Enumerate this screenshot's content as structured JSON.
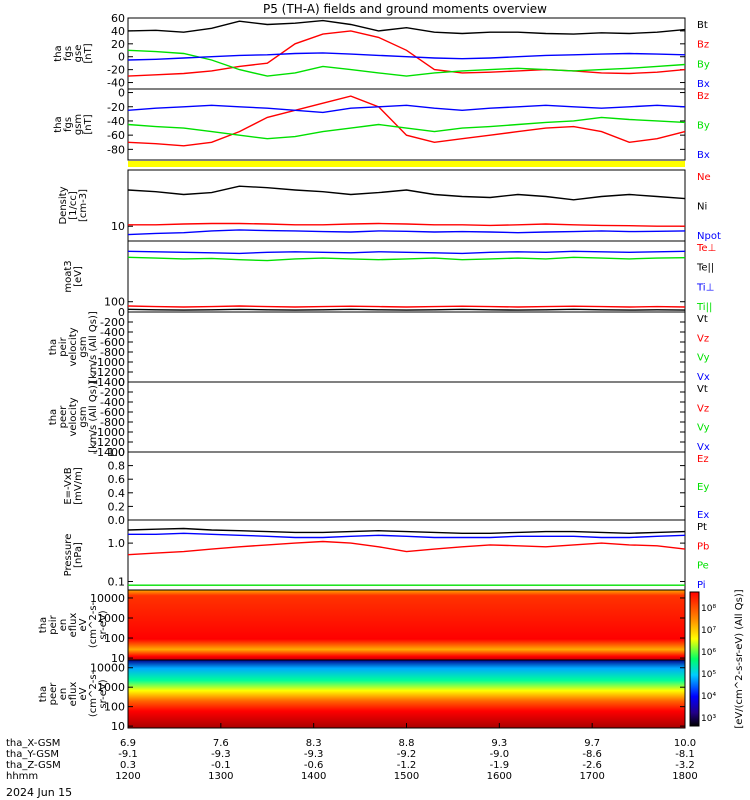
{
  "title": "P5 (TH-A) fields and ground moments overview",
  "date_label": "2024 Jun 15",
  "colors": {
    "black": "#000000",
    "red": "#ff0000",
    "green": "#00e000",
    "blue": "#0000ff",
    "yellow": "#ffff00"
  },
  "chart_data": [
    {
      "type": "line",
      "ylabel_lines": [
        "tha",
        "fgs",
        "gse",
        "[nT]"
      ],
      "ylim": [
        -50,
        60
      ],
      "yticks": [
        "60",
        "40",
        "20",
        "0",
        "-20",
        "-40"
      ],
      "ytick_values": [
        60,
        40,
        20,
        0,
        -20,
        -40
      ],
      "series": [
        {
          "name": "Bt",
          "color": "black",
          "values": [
            40,
            41,
            38,
            44,
            55,
            50,
            52,
            56,
            50,
            40,
            45,
            38,
            36,
            38,
            38,
            36,
            35,
            37,
            36,
            38,
            42
          ]
        },
        {
          "name": "Bz",
          "color": "red",
          "values": [
            -30,
            -28,
            -26,
            -22,
            -15,
            -10,
            20,
            35,
            40,
            30,
            10,
            -20,
            -25,
            -24,
            -22,
            -20,
            -22,
            -25,
            -26,
            -24,
            -20
          ]
        },
        {
          "name": "By",
          "color": "green",
          "values": [
            10,
            8,
            5,
            -5,
            -20,
            -30,
            -25,
            -15,
            -20,
            -25,
            -30,
            -25,
            -22,
            -20,
            -18,
            -20,
            -22,
            -20,
            -18,
            -15,
            -12
          ]
        },
        {
          "name": "Bx",
          "color": "blue",
          "values": [
            -5,
            -4,
            -2,
            0,
            2,
            3,
            5,
            6,
            4,
            2,
            0,
            -2,
            -3,
            -2,
            0,
            2,
            3,
            4,
            5,
            4,
            3
          ]
        }
      ]
    },
    {
      "type": "line",
      "ylabel_lines": [
        "tha",
        "fgs",
        "gsm",
        "[nT]"
      ],
      "ylim": [
        -95,
        5
      ],
      "yticks": [
        "0",
        "-20",
        "-40",
        "-60",
        "-80"
      ],
      "ytick_values": [
        0,
        -20,
        -40,
        -60,
        -80
      ],
      "series": [
        {
          "name": "Bz",
          "color": "red",
          "values": [
            -70,
            -72,
            -75,
            -70,
            -55,
            -35,
            -25,
            -15,
            -5,
            -20,
            -60,
            -70,
            -65,
            -60,
            -55,
            -50,
            -48,
            -55,
            -70,
            -65,
            -55
          ]
        },
        {
          "name": "By",
          "color": "green",
          "values": [
            -45,
            -48,
            -50,
            -55,
            -60,
            -65,
            -62,
            -55,
            -50,
            -45,
            -50,
            -55,
            -50,
            -48,
            -45,
            -42,
            -40,
            -35,
            -38,
            -40,
            -42
          ]
        },
        {
          "name": "Bx",
          "color": "blue",
          "values": [
            -25,
            -22,
            -20,
            -18,
            -20,
            -22,
            -25,
            -28,
            -22,
            -20,
            -18,
            -22,
            -25,
            -22,
            -20,
            -18,
            -20,
            -22,
            -20,
            -18,
            -20
          ]
        }
      ]
    },
    {
      "type": "line",
      "ylabel_lines": [
        "Density",
        "[1/cc]",
        "[cm-3]"
      ],
      "yscale": "log",
      "ylim": [
        6,
        70
      ],
      "yticks": [
        "10"
      ],
      "ytick_values": [
        10
      ],
      "series": [
        {
          "name": "Ne",
          "color": "red",
          "values": [
            10.5,
            10.5,
            10.8,
            11,
            11,
            10.8,
            10.5,
            10.5,
            10.8,
            11,
            10.8,
            10.5,
            10.5,
            10.3,
            10.5,
            10.8,
            10.5,
            10.3,
            10.2,
            10,
            10
          ]
        },
        {
          "name": "Ni",
          "color": "black",
          "values": [
            35,
            33,
            30,
            32,
            40,
            38,
            35,
            33,
            30,
            32,
            35,
            30,
            28,
            27,
            30,
            28,
            25,
            28,
            30,
            28,
            26
          ]
        },
        {
          "name": "Npot",
          "color": "blue",
          "values": [
            7.5,
            7.8,
            8,
            8.5,
            8.8,
            8.6,
            8.5,
            8.3,
            8.2,
            8.5,
            8.4,
            8.2,
            8.3,
            8.2,
            8.0,
            8.2,
            8.3,
            8.5,
            8.3,
            8.4,
            8.5
          ]
        }
      ]
    },
    {
      "type": "line",
      "ylabel_lines": [
        "moat3",
        "[eV]"
      ],
      "yscale": "log",
      "ylim": [
        50,
        6000
      ],
      "yticks": [
        "100"
      ],
      "ytick_values": [
        100
      ],
      "series": [
        {
          "name": "Te⊥",
          "color": "red",
          "values": [
            75,
            72,
            70,
            72,
            75,
            72,
            70,
            72,
            74,
            72,
            70,
            72,
            74,
            72,
            70,
            72,
            74,
            72,
            70,
            72,
            70
          ]
        },
        {
          "name": "Te||",
          "color": "black",
          "values": [
            60,
            58,
            57,
            58,
            60,
            58,
            57,
            58,
            60,
            58,
            57,
            58,
            60,
            58,
            57,
            58,
            60,
            58,
            57,
            58,
            57
          ]
        },
        {
          "name": "Ti⊥",
          "color": "blue",
          "values": [
            3000,
            2900,
            2800,
            2700,
            2600,
            2800,
            2900,
            2800,
            2700,
            2900,
            2800,
            2700,
            2600,
            2800,
            2900,
            2800,
            3000,
            2900,
            2800,
            2900,
            3000
          ]
        },
        {
          "name": "Ti||",
          "color": "green",
          "values": [
            2000,
            1900,
            1800,
            1850,
            1700,
            1600,
            1800,
            1900,
            1800,
            1700,
            1800,
            1900,
            1700,
            1800,
            1900,
            1800,
            2000,
            1900,
            1800,
            1900,
            1950
          ]
        }
      ]
    },
    {
      "type": "line",
      "ylabel_lines": [
        "tha",
        "peir",
        "velocity",
        "gsm",
        "[km/s (All Qs)]"
      ],
      "ylim": [
        -1400,
        0
      ],
      "yticks": [
        "0",
        "-200",
        "-400",
        "-600",
        "-800",
        "-1000",
        "-1200",
        "-1400"
      ],
      "ytick_values": [
        0,
        -200,
        -400,
        -600,
        -800,
        -1000,
        -1200,
        -1400
      ],
      "series": [
        {
          "name": "Vt",
          "color": "black",
          "values": []
        },
        {
          "name": "Vz",
          "color": "red",
          "values": []
        },
        {
          "name": "Vy",
          "color": "green",
          "values": []
        },
        {
          "name": "Vx",
          "color": "blue",
          "values": []
        }
      ]
    },
    {
      "type": "line",
      "ylabel_lines": [
        "tha",
        "peer",
        "velocity",
        "gsm",
        "[km/s (All Qs)]"
      ],
      "ylim": [
        -1400,
        0
      ],
      "yticks": [
        "0",
        "-200",
        "-400",
        "-600",
        "-800",
        "-1000",
        "-1200",
        "-1400"
      ],
      "ytick_values": [
        0,
        -200,
        -400,
        -600,
        -800,
        -1000,
        -1200,
        -1400
      ],
      "series": [
        {
          "name": "Vt",
          "color": "black",
          "values": []
        },
        {
          "name": "Vz",
          "color": "red",
          "values": []
        },
        {
          "name": "Vy",
          "color": "green",
          "values": []
        },
        {
          "name": "Vx",
          "color": "blue",
          "values": []
        }
      ]
    },
    {
      "type": "line",
      "ylabel_lines": [
        "E=-VxB",
        "[mV/m]"
      ],
      "ylim": [
        0,
        1
      ],
      "yticks": [
        "1.0",
        "0.8",
        "0.6",
        "0.4",
        "0.2",
        "0.0"
      ],
      "ytick_values": [
        1.0,
        0.8,
        0.6,
        0.4,
        0.2,
        0.0
      ],
      "series": [
        {
          "name": "Ez",
          "color": "red",
          "values": []
        },
        {
          "name": "Ey",
          "color": "green",
          "values": []
        },
        {
          "name": "Ex",
          "color": "blue",
          "values": []
        }
      ]
    },
    {
      "type": "line",
      "ylabel_lines": [
        "Pressure",
        "[nPa]"
      ],
      "yscale": "log",
      "ylim": [
        0.06,
        4
      ],
      "yticks": [
        "1.0",
        "0.1"
      ],
      "ytick_values": [
        1.0,
        0.1
      ],
      "series": [
        {
          "name": "Pt",
          "color": "black",
          "values": [
            2.2,
            2.3,
            2.4,
            2.2,
            2.1,
            2.0,
            1.9,
            1.9,
            2.0,
            2.1,
            2.0,
            1.9,
            1.8,
            1.8,
            1.9,
            2.0,
            2.0,
            1.9,
            1.8,
            1.9,
            2.0
          ]
        },
        {
          "name": "Pb",
          "color": "red",
          "values": [
            0.5,
            0.55,
            0.6,
            0.7,
            0.8,
            0.9,
            1.0,
            1.1,
            1.0,
            0.8,
            0.6,
            0.7,
            0.8,
            0.9,
            0.85,
            0.8,
            0.9,
            1.0,
            0.9,
            0.85,
            0.7
          ]
        },
        {
          "name": "Pe",
          "color": "green",
          "values": [
            0.08,
            0.08,
            0.08,
            0.08,
            0.08,
            0.08,
            0.08,
            0.08,
            0.08,
            0.08,
            0.08,
            0.08,
            0.08,
            0.08,
            0.08,
            0.08,
            0.08,
            0.08,
            0.08,
            0.08,
            0.08
          ]
        },
        {
          "name": "Pi",
          "color": "blue",
          "values": [
            1.7,
            1.7,
            1.8,
            1.7,
            1.6,
            1.5,
            1.4,
            1.4,
            1.5,
            1.6,
            1.5,
            1.4,
            1.4,
            1.4,
            1.5,
            1.5,
            1.5,
            1.4,
            1.4,
            1.5,
            1.6
          ]
        }
      ]
    },
    {
      "type": "heatmap",
      "ylabel_lines": [
        "tha",
        "peir",
        "en",
        "eflux",
        "eV",
        "(cm^2-s-",
        "sr-eV)"
      ],
      "yscale": "log",
      "ylim": [
        8,
        25000
      ],
      "yticks": [
        "10000",
        "1000",
        "100",
        "10"
      ],
      "ytick_values": [
        10000,
        1000,
        100,
        10
      ]
    },
    {
      "type": "heatmap",
      "ylabel_lines": [
        "tha",
        "peer",
        "en",
        "eflux",
        "eV",
        "(cm^2-s-",
        "sr-eV)"
      ],
      "yscale": "log",
      "ylim": [
        8,
        25000
      ],
      "yticks": [
        "10000",
        "1000",
        "100",
        "10"
      ],
      "ytick_values": [
        10000,
        1000,
        100,
        10
      ]
    }
  ],
  "colorbar": {
    "label": "[eV/(cm^2-s-sr-eV) (All Qs)]",
    "ticks": [
      "10⁸",
      "10⁷",
      "10⁶",
      "10⁵",
      "10⁴",
      "10³"
    ]
  },
  "x_axis": {
    "hhmm": [
      "1200",
      "1300",
      "1400",
      "1500",
      "1600",
      "1700",
      "1800"
    ],
    "rows": [
      {
        "label": "tha_X-GSM",
        "values": [
          "6.9",
          "7.6",
          "8.3",
          "8.8",
          "9.3",
          "9.7",
          "10.0"
        ]
      },
      {
        "label": "tha_Y-GSM",
        "values": [
          "-9.1",
          "-9.3",
          "-9.3",
          "-9.2",
          "-9.0",
          "-8.6",
          "-8.1"
        ]
      },
      {
        "label": "tha_Z-GSM",
        "values": [
          "0.3",
          "-0.1",
          "-0.6",
          "-1.2",
          "-1.9",
          "-2.6",
          "-3.2"
        ]
      },
      {
        "label": "hhmm",
        "values": [
          "1200",
          "1300",
          "1400",
          "1500",
          "1600",
          "1700",
          "1800"
        ]
      }
    ]
  }
}
